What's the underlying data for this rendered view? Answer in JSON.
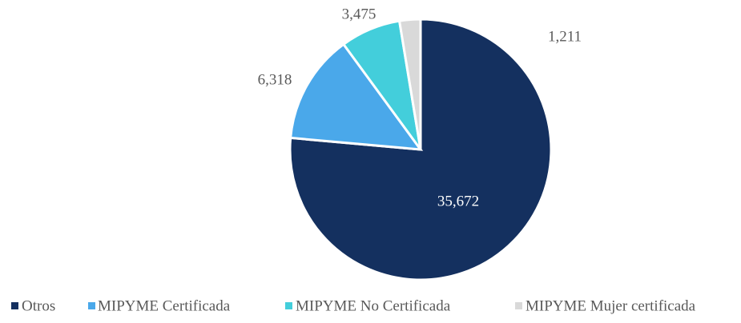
{
  "chart_data": {
    "type": "pie",
    "categories": [
      "Otros",
      "MIPYME Certificada",
      "MIPYME No Certificada",
      "MIPYME Mujer certificada"
    ],
    "values": [
      35672,
      6318,
      3475,
      1211
    ],
    "value_labels": [
      "35,672",
      "6,318",
      "3,475",
      "1,211"
    ],
    "colors": [
      "#14305f",
      "#4aa8ea",
      "#43cedb",
      "#d9d9d9"
    ],
    "legend": "bottom"
  }
}
